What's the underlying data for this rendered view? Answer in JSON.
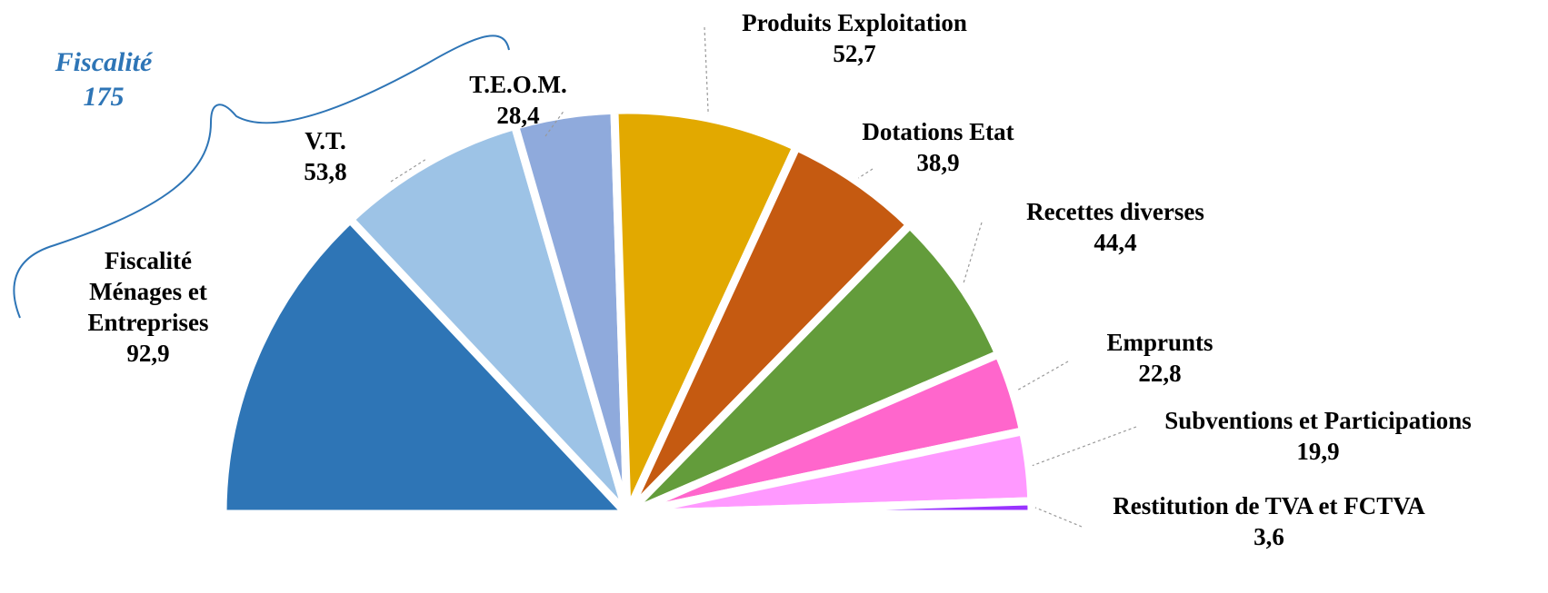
{
  "chart_data": {
    "type": "half-pie",
    "categories": [
      "Fiscalité Ménages et Entreprises",
      "V.T.",
      "T.E.O.M.",
      "Produits Exploitation",
      "Dotations Etat",
      "Recettes diverses",
      "Emprunts",
      "Subventions et Participations",
      "Restitution de TVA et  FCTVA"
    ],
    "values": [
      92.9,
      53.8,
      28.4,
      52.7,
      38.9,
      44.4,
      22.8,
      19.9,
      3.6
    ],
    "value_labels": [
      "92,9",
      "53,8",
      "28,4",
      "52,7",
      "38,9",
      "44,4",
      "22,8",
      "19,9",
      "3,6"
    ],
    "colors": [
      "#2e75b6",
      "#9dc3e6",
      "#8faadc",
      "#e2a900",
      "#c55a11",
      "#639c3b",
      "#ff66cc",
      "#ff99ff",
      "#9933ff"
    ],
    "annotation": {
      "label": "Fiscalité",
      "value": 175
    }
  }
}
